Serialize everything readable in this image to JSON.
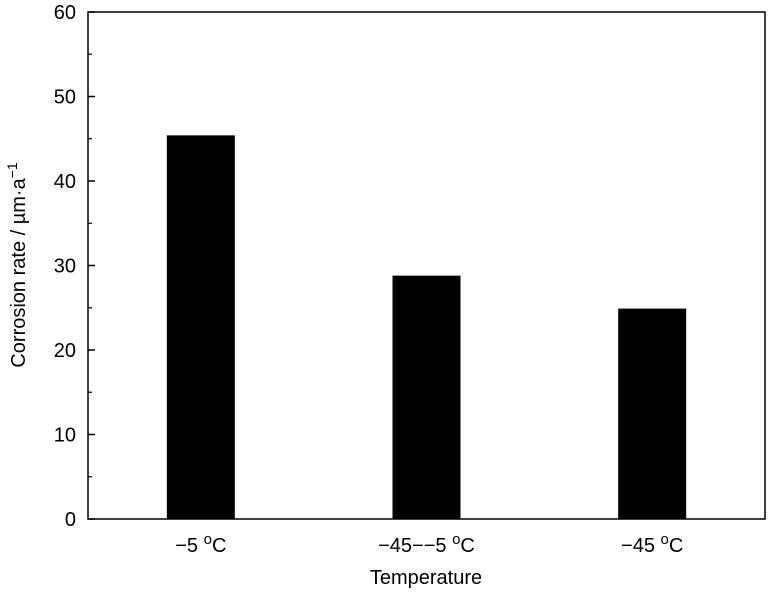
{
  "chart_data": {
    "type": "bar",
    "title": "",
    "xlabel": "Temperature",
    "ylabel": "Corrosion rate / µm·a",
    "ylabel_superscript": "−1",
    "categories": [
      {
        "prefix": "−5 ",
        "degree": "o",
        "unit": "C"
      },
      {
        "prefix": "−45−−5 ",
        "degree": "o",
        "unit": "C"
      },
      {
        "prefix": "−45 ",
        "degree": "o",
        "unit": "C"
      }
    ],
    "values": [
      45.4,
      28.8,
      24.9
    ],
    "ylim": [
      0,
      60
    ],
    "yticks": [
      0,
      10,
      20,
      30,
      40,
      50,
      60
    ],
    "yticks_minor": [
      5,
      15,
      25,
      35,
      45,
      55
    ],
    "grid": false,
    "legend": "none",
    "bar_color": "#000000"
  }
}
